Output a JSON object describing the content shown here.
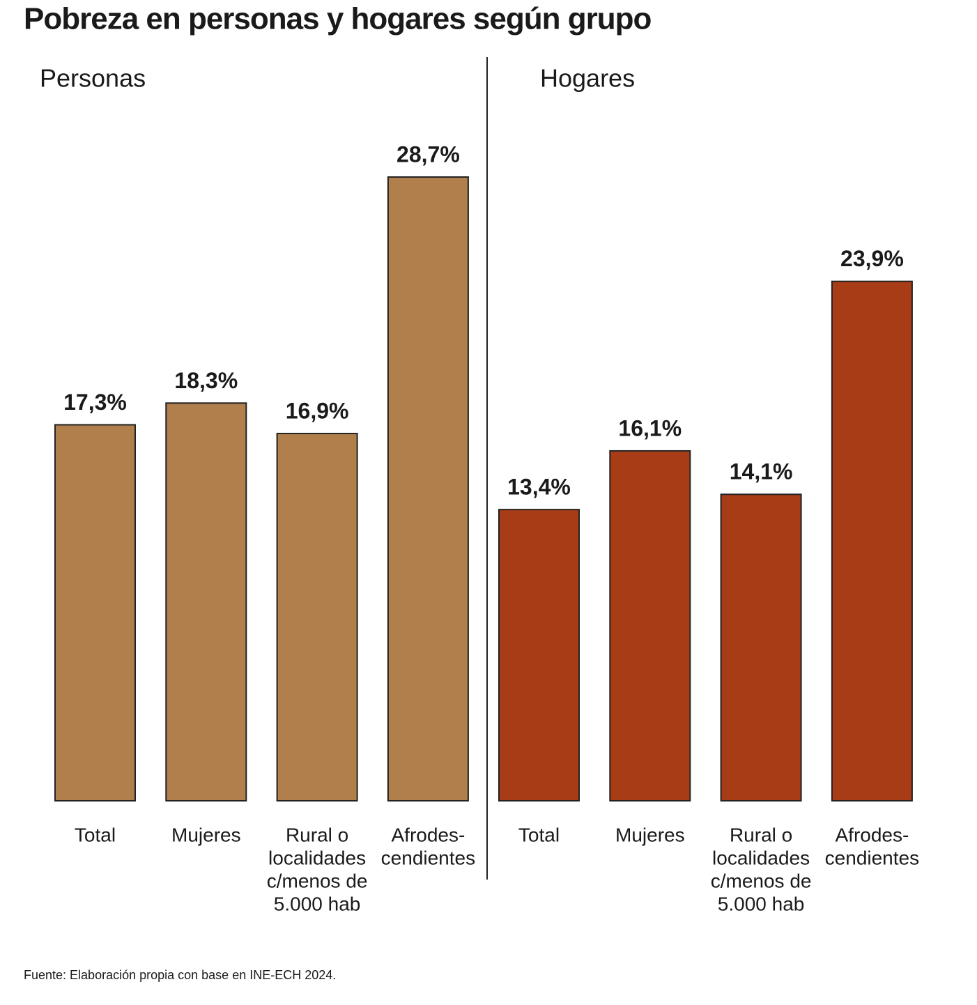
{
  "title": "Pobreza en personas y hogares según grupo",
  "source": "Fuente: Elaboración propia con base en INE-ECH 2024.",
  "chart_data": [
    {
      "type": "bar",
      "title": "Personas",
      "color": "#b07f4c",
      "categories": [
        [
          "Total"
        ],
        [
          "Mujeres"
        ],
        [
          "Rural o",
          "localidades",
          "c/menos de",
          "5.000 hab"
        ],
        [
          "Afrodes-",
          "cendientes"
        ]
      ],
      "values": [
        17.3,
        18.3,
        16.9,
        28.7
      ],
      "value_labels": [
        "17,3%",
        "18,3%",
        "16,9%",
        "28,7%"
      ]
    },
    {
      "type": "bar",
      "title": "Hogares",
      "color": "#a83c17",
      "categories": [
        [
          "Total"
        ],
        [
          "Mujeres"
        ],
        [
          "Rural o",
          "localidades",
          "c/menos de",
          "5.000 hab"
        ],
        [
          "Afrodes-",
          "cendientes"
        ]
      ],
      "values": [
        13.4,
        16.1,
        14.1,
        23.9
      ],
      "value_labels": [
        "13,4%",
        "16,1%",
        "14,1%",
        "23,9%"
      ]
    }
  ]
}
